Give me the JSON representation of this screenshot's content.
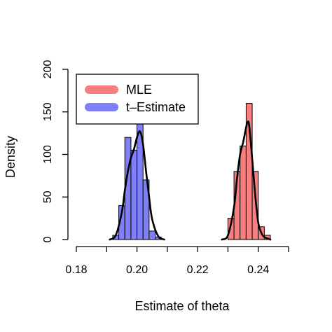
{
  "chart_data": {
    "type": "bar",
    "xlabel": "Estimate of theta",
    "ylabel": "Density",
    "xlim": [
      0.18,
      0.25
    ],
    "ylim": [
      0,
      200
    ],
    "x_ticks": [
      "0.18",
      "0.20",
      "0.22",
      "0.24"
    ],
    "x_tick_values": [
      0.18,
      0.2,
      0.22,
      0.24
    ],
    "y_ticks": [
      "0",
      "50",
      "100",
      "150",
      "200"
    ],
    "y_tick_values": [
      0,
      50,
      100,
      150,
      200
    ],
    "legend_position": "top-left",
    "series": [
      {
        "name": "MLE",
        "color": "#f87f7f",
        "bin_width": 0.002,
        "bins": [
          {
            "x0": 0.23,
            "value": 25
          },
          {
            "x0": 0.232,
            "value": 80
          },
          {
            "x0": 0.234,
            "value": 110
          },
          {
            "x0": 0.236,
            "value": 160
          },
          {
            "x0": 0.238,
            "value": 80
          },
          {
            "x0": 0.24,
            "value": 15
          },
          {
            "x0": 0.242,
            "value": 5
          }
        ],
        "density_curve": {
          "x": [
            0.228,
            0.23,
            0.232,
            0.233,
            0.234,
            0.235,
            0.236,
            0.2365,
            0.237,
            0.238,
            0.239,
            0.24,
            0.241,
            0.242,
            0.244
          ],
          "y": [
            0,
            5,
            38,
            72,
            100,
            114,
            132,
            138,
            134,
            95,
            52,
            20,
            8,
            3,
            0
          ]
        }
      },
      {
        "name": "t–Estimate",
        "color": "#7f7ff8",
        "bin_width": 0.002,
        "bins": [
          {
            "x0": 0.192,
            "value": 5
          },
          {
            "x0": 0.194,
            "value": 40
          },
          {
            "x0": 0.196,
            "value": 120
          },
          {
            "x0": 0.198,
            "value": 105
          },
          {
            "x0": 0.2,
            "value": 140
          },
          {
            "x0": 0.202,
            "value": 70
          },
          {
            "x0": 0.204,
            "value": 10
          },
          {
            "x0": 0.206,
            "value": 3
          }
        ],
        "density_curve": {
          "x": [
            0.191,
            0.193,
            0.195,
            0.196,
            0.197,
            0.198,
            0.199,
            0.2,
            0.201,
            0.202,
            0.203,
            0.204,
            0.205,
            0.207,
            0.209
          ],
          "y": [
            0,
            5,
            32,
            58,
            80,
            96,
            106,
            120,
            127,
            112,
            80,
            50,
            24,
            4,
            0
          ]
        }
      }
    ]
  }
}
